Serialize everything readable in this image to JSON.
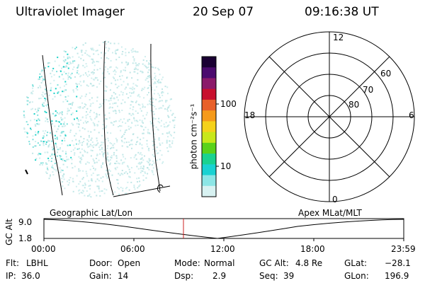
{
  "header": {
    "instrument": "Ultraviolet Imager",
    "date": "20 Sep 07",
    "time": "09:16:38 UT"
  },
  "colorbar": {
    "label": "photon cm⁻²s⁻¹",
    "ticks": [
      "100",
      "10"
    ],
    "colors": [
      "#1a0033",
      "#4b0a6e",
      "#8b1a6a",
      "#c8102e",
      "#e8602a",
      "#f59a1a",
      "#f5d21a",
      "#c8e81a",
      "#5ad21a",
      "#1ad290",
      "#1ad2d2",
      "#8ce6e6",
      "#d8f2f2"
    ]
  },
  "polar": {
    "mlt_labels": [
      "12",
      "18",
      "6",
      "0"
    ],
    "lat_labels": [
      "60",
      "70",
      "80"
    ]
  },
  "altitude_panel": {
    "left_title": "Geographic Lat/Lon",
    "right_title": "Apex  MLat/MLT",
    "ylabel": "GC Alt",
    "yticks": [
      "9.0",
      "1.8"
    ],
    "xticks": [
      "00:00",
      "06:00",
      "12:00",
      "18:00",
      "23:59"
    ],
    "marker_color": "#cc2222"
  },
  "status": {
    "filter_label": "Flt:",
    "filter_value": "LBHL",
    "ip_label": "IP:",
    "ip_value": "36.0",
    "door_label": "Door:",
    "door_value": "Open",
    "gain_label": "Gain:",
    "gain_value": "14",
    "mode_label": "Mode:",
    "mode_value": "Normal",
    "dsp_label": "Dsp:",
    "dsp_value": "2.9",
    "gcalt_label": "GC Alt:",
    "gcalt_value": "4.8 Re",
    "seq_label": "Seq:",
    "seq_value": "39",
    "glat_label": "GLat:",
    "glat_value": "−28.1",
    "glon_label": "GLon:",
    "glon_value": "196.9"
  }
}
